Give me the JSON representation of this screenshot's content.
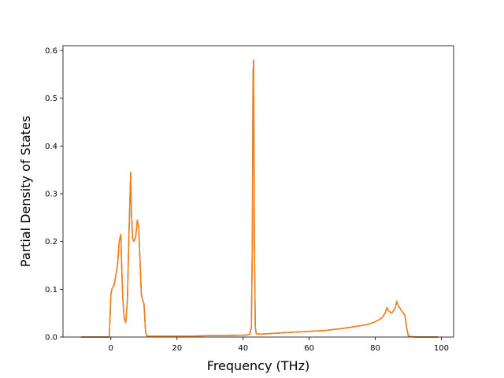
{
  "chart_data": {
    "type": "line",
    "title": "",
    "xlabel": "Frequency (THz)",
    "ylabel": "Partial Density of States",
    "xlim": [
      -14.5,
      103.7
    ],
    "ylim": [
      0,
      0.61
    ],
    "xticks": [
      0,
      20,
      40,
      60,
      80,
      100
    ],
    "yticks": [
      0.0,
      0.1,
      0.2,
      0.3,
      0.4,
      0.5,
      0.6
    ],
    "xtick_labels": [
      "0",
      "20",
      "40",
      "60",
      "80",
      "100"
    ],
    "ytick_labels": [
      "0.0",
      "0.1",
      "0.2",
      "0.3",
      "0.4",
      "0.5",
      "0.6"
    ],
    "grid": false,
    "legend": "none",
    "series": [
      {
        "color": "#1f77b4",
        "x": [
          -9,
          -0.5,
          0,
          0.3,
          1,
          2,
          2.5,
          3,
          3.2,
          3.6,
          4,
          4.5,
          5,
          5.4,
          5.8,
          6,
          6.2,
          6.6,
          7,
          7.5,
          8,
          8.4,
          8.8,
          9.2,
          9.5,
          10,
          10.5,
          10.9,
          15,
          20,
          25,
          30,
          35,
          40,
          41,
          42,
          42.5,
          42.8,
          43.0,
          43.2,
          43.4,
          43.7,
          44,
          45,
          50,
          55,
          60,
          65,
          70,
          75,
          78,
          80,
          82,
          83,
          83.5,
          84,
          85,
          86,
          86.5,
          87,
          88,
          89,
          89.5,
          90,
          92,
          95,
          99
        ],
        "y": [
          0,
          0,
          0.09,
          0.1,
          0.11,
          0.15,
          0.2,
          0.215,
          0.16,
          0.08,
          0.04,
          0.03,
          0.08,
          0.2,
          0.3,
          0.345,
          0.26,
          0.205,
          0.2,
          0.21,
          0.245,
          0.23,
          0.16,
          0.09,
          0.08,
          0.07,
          0.01,
          0.002,
          0.002,
          0.002,
          0.002,
          0.003,
          0.003,
          0.004,
          0.004,
          0.006,
          0.02,
          0.2,
          0.55,
          0.58,
          0.2,
          0.02,
          0.007,
          0.006,
          0.008,
          0.01,
          0.012,
          0.014,
          0.018,
          0.023,
          0.027,
          0.032,
          0.04,
          0.05,
          0.062,
          0.055,
          0.05,
          0.06,
          0.075,
          0.065,
          0.055,
          0.045,
          0.02,
          0.002,
          0,
          0,
          0
        ]
      },
      {
        "color": "#ff7f0e",
        "x": [
          -9,
          -0.5,
          0,
          0.3,
          1,
          2,
          2.5,
          3,
          3.2,
          3.6,
          4,
          4.5,
          5,
          5.4,
          5.8,
          6,
          6.2,
          6.6,
          7,
          7.5,
          8,
          8.4,
          8.8,
          9.2,
          9.5,
          10,
          10.5,
          10.9,
          15,
          20,
          25,
          30,
          35,
          40,
          41,
          42,
          42.5,
          42.8,
          43.0,
          43.2,
          43.4,
          43.7,
          44,
          45,
          50,
          55,
          60,
          65,
          70,
          75,
          78,
          80,
          82,
          83,
          83.5,
          84,
          85,
          86,
          86.5,
          87,
          88,
          89,
          89.5,
          90,
          92,
          95,
          99
        ],
        "y": [
          0,
          0,
          0.09,
          0.1,
          0.11,
          0.15,
          0.2,
          0.215,
          0.16,
          0.08,
          0.04,
          0.03,
          0.08,
          0.2,
          0.3,
          0.345,
          0.26,
          0.205,
          0.2,
          0.21,
          0.245,
          0.23,
          0.16,
          0.09,
          0.08,
          0.07,
          0.01,
          0.002,
          0.002,
          0.002,
          0.002,
          0.003,
          0.003,
          0.004,
          0.004,
          0.006,
          0.02,
          0.2,
          0.55,
          0.58,
          0.2,
          0.02,
          0.007,
          0.006,
          0.008,
          0.01,
          0.012,
          0.014,
          0.018,
          0.023,
          0.027,
          0.032,
          0.04,
          0.05,
          0.062,
          0.055,
          0.05,
          0.06,
          0.075,
          0.065,
          0.055,
          0.045,
          0.02,
          0.002,
          0,
          0,
          0
        ]
      }
    ]
  }
}
